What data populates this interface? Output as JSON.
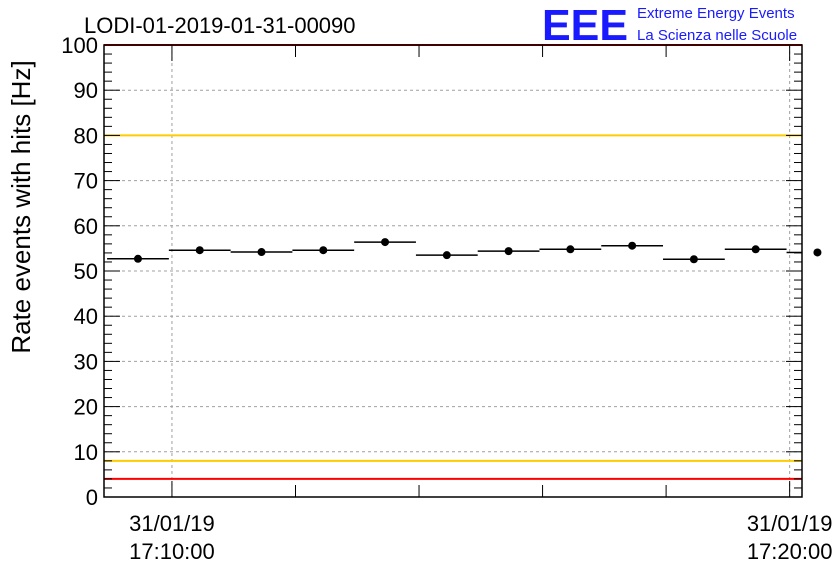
{
  "logo": {
    "mark": "EEE",
    "line1": "Extreme Energy Events",
    "line2": "La Scienza nelle Scuole",
    "color": "#1a1aff"
  },
  "chart_data": {
    "type": "scatter",
    "title": "LODI-01-2019-01-31-00090",
    "ylabel": "Rate events with hits [Hz]",
    "xlabel": "",
    "ylim": [
      0,
      100
    ],
    "xlim_minutes": [
      0,
      11.3
    ],
    "y_ticks": [
      "0",
      "10",
      "20",
      "30",
      "40",
      "50",
      "60",
      "70",
      "80",
      "90",
      "100"
    ],
    "x_ticks": [
      {
        "minute": 1,
        "date": "31/01/19",
        "time": "17:10:00"
      },
      {
        "minute": 11,
        "date": "31/01/19",
        "time": "17:20:00"
      }
    ],
    "grid": true,
    "bin_width_minutes": 1,
    "points_x_minutes": [
      0,
      1,
      2,
      3,
      4,
      5,
      6,
      7,
      8,
      9,
      10,
      11
    ],
    "points_y": [
      52.7,
      54.6,
      54.2,
      54.6,
      56.4,
      53.5,
      54.4,
      54.8,
      55.6,
      52.6,
      54.8,
      54.1
    ],
    "reference_lines": [
      {
        "value": 100,
        "color": "#ff0000"
      },
      {
        "value": 80,
        "color": "#ffcc00"
      },
      {
        "value": 8,
        "color": "#ffcc00"
      },
      {
        "value": 4,
        "color": "#ff0000"
      }
    ]
  }
}
